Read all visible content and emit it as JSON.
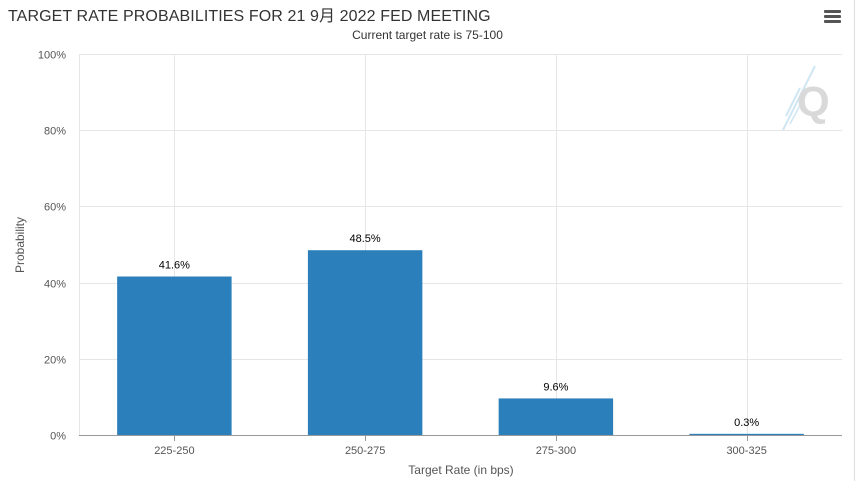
{
  "header": {
    "title": "TARGET RATE PROBABILITIES FOR 21 9月 2022 FED MEETING",
    "subtitle": "Current target rate is 75-100",
    "menu_icon": "hamburger-menu-icon",
    "watermark_icon": "q-logo-icon"
  },
  "colors": {
    "bar": "#2b7fba",
    "grid": "#e6e6e6",
    "axis": "#999999"
  },
  "chart_data": {
    "type": "bar",
    "title": "TARGET RATE PROBABILITIES FOR 21 9月 2022 FED MEETING",
    "subtitle": "Current target rate is 75-100",
    "categories": [
      "225-250",
      "250-275",
      "275-300",
      "300-325"
    ],
    "values": [
      41.6,
      48.5,
      9.6,
      0.3
    ],
    "data_labels": [
      "41.6%",
      "48.5%",
      "9.6%",
      "0.3%"
    ],
    "xlabel": "Target Rate (in bps)",
    "ylabel": "Probability",
    "ylim": [
      0,
      100
    ],
    "yticks": [
      0,
      20,
      40,
      60,
      80,
      100
    ],
    "ytick_labels": [
      "0%",
      "20%",
      "40%",
      "60%",
      "80%",
      "100%"
    ],
    "grid": true,
    "legend": "none"
  }
}
